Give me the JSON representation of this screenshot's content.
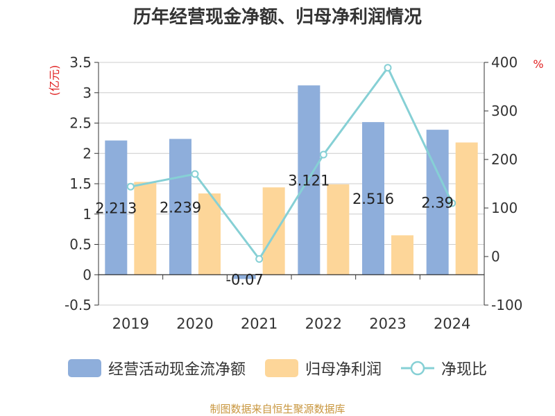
{
  "chart_data": {
    "type": "bar",
    "title": "历年经营现金净额、归母净利润情况",
    "categories": [
      "2019",
      "2020",
      "2021",
      "2022",
      "2023",
      "2024"
    ],
    "y_left": {
      "unit_label": "(亿元)",
      "ylim": [
        -0.5,
        3.5
      ],
      "ticks": [
        "3.5",
        "3",
        "2.5",
        "2",
        "1.5",
        "1",
        "0.5",
        "0",
        "-0.5"
      ]
    },
    "y_right": {
      "unit_label": "%",
      "ylim": [
        -100,
        400
      ],
      "ticks": [
        "400",
        "300",
        "200",
        "100",
        "0",
        "-100"
      ]
    },
    "series": [
      {
        "name": "经营活动现金流净额",
        "type": "bar",
        "axis": "left",
        "color": "#8eaedb",
        "values": [
          2.213,
          2.239,
          -0.07,
          3.121,
          2.516,
          2.39
        ],
        "labels": [
          "2.213",
          "2.239",
          "-0.07",
          "3.121",
          "2.516",
          "2.39"
        ]
      },
      {
        "name": "归母净利润",
        "type": "bar",
        "axis": "left",
        "color": "#fdd699",
        "values": [
          1.53,
          1.34,
          1.44,
          1.49,
          0.65,
          2.18
        ]
      },
      {
        "name": "净现比",
        "type": "line",
        "axis": "right",
        "color": "#86d0d5",
        "values": [
          144,
          170,
          -5,
          210,
          389,
          110
        ]
      }
    ],
    "grid": true,
    "legend_position": "bottom"
  },
  "colors": {
    "unit_label": "#e02020",
    "title": "#333333",
    "source": "#c8963e"
  },
  "footer": {
    "source": "制图数据来自恒生聚源数据库"
  }
}
